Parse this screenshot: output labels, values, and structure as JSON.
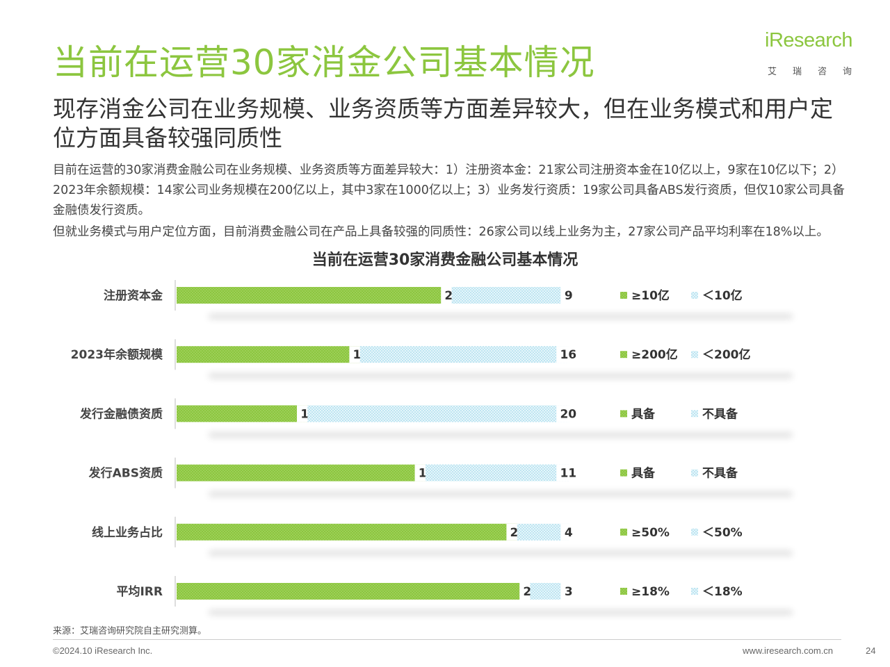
{
  "header": {
    "title": "当前在运营30家消金公司基本情况",
    "subtitle": "现存消金公司在业务规模、业务资质等方面差异较大，但在业务模式和用户定位方面具备较强同质性"
  },
  "logo": {
    "text": "iResearch",
    "sub": "艾瑞咨询"
  },
  "description": {
    "para1": "目前在运营的30家消费金融公司在业务规模、业务资质等方面差异较大：1）注册资本金：21家公司注册资本金在10亿以上，9家在10亿以下；2）2023年余额规模：14家公司业务规模在200亿以上，其中3家在1000亿以上；3）业务发行资质：19家公司具备ABS发行资质，但仅10家公司具备金融债发行资质。",
    "para2": "但就业务模式与用户定位方面，目前消费金融公司在产品上具备较强的同质性：26家公司以线上业务为主，27家公司产品平均利率在18%以上。"
  },
  "chart_data": {
    "type": "bar",
    "orientation": "horizontal",
    "stacked": true,
    "title": "当前在运营30家消费金融公司基本情况",
    "categories": [
      "注册资本金",
      "2023年余额规模",
      "发行金融债资质",
      "发行ABS资质",
      "线上业务占比",
      "平均IRR"
    ],
    "series": [
      {
        "values": [
          21,
          14,
          10,
          19,
          26,
          27
        ],
        "color": "#8cc63f"
      },
      {
        "values": [
          9,
          16,
          20,
          11,
          4,
          3
        ],
        "color": "#a6dcec"
      }
    ],
    "legends": [
      [
        "≥10亿",
        "＜10亿"
      ],
      [
        "≥200亿",
        "＜200亿"
      ],
      [
        "具备",
        "不具备"
      ],
      [
        "具备",
        "不具备"
      ],
      [
        "≥50%",
        "＜50%"
      ],
      [
        "≥18%",
        "＜18%"
      ]
    ],
    "xlim": [
      0,
      30
    ]
  },
  "footer": {
    "source": "来源：艾瑞咨询研究院自主研究测算。",
    "copyright": "©2024.10 iResearch Inc.",
    "website": "www.iresearch.com.cn",
    "page": "24"
  }
}
